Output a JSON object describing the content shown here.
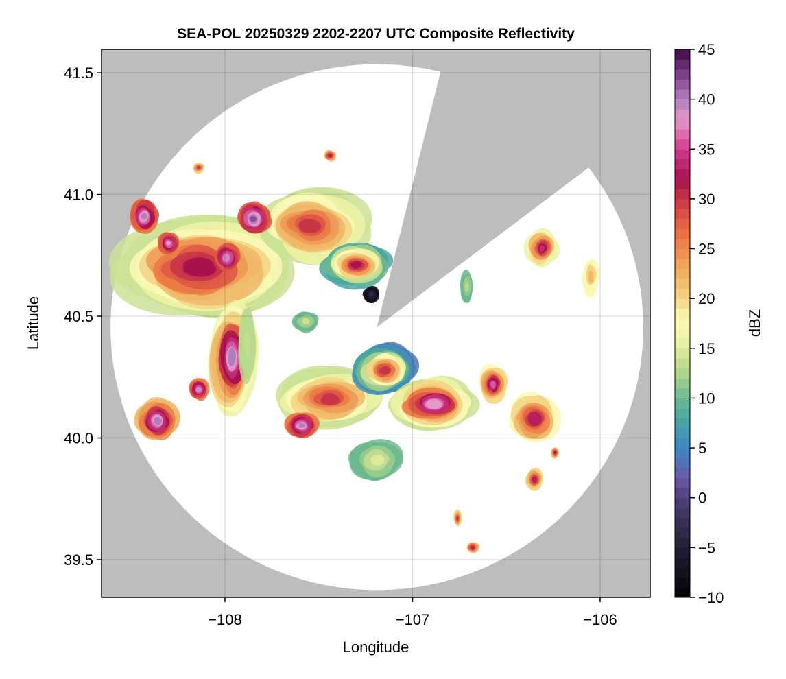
{
  "chart_data": {
    "type": "heatmap",
    "title": "SEA-POL 20250329 2202-2207 UTC Composite Reflectivity",
    "xlabel": "Longitude",
    "ylabel": "Latitude",
    "xlim": [
      -108.658,
      -105.733
    ],
    "ylim": [
      39.345,
      41.596
    ],
    "xticks": [
      -108,
      -107,
      -106
    ],
    "xtick_labels": [
      "−108",
      "−107",
      "−106"
    ],
    "yticks": [
      39.5,
      40.0,
      40.5,
      41.0,
      41.5
    ],
    "ytick_labels": [
      "39.5",
      "40.0",
      "40.5",
      "41.0",
      "41.5"
    ],
    "grid": true,
    "colorbar": {
      "label": "dBZ",
      "range": [
        -10,
        45
      ],
      "bin_width": 1,
      "ticks": [
        -10,
        -5,
        0,
        5,
        10,
        15,
        20,
        25,
        30,
        35,
        40,
        45
      ],
      "tick_labels": [
        "−10",
        "−5",
        "0",
        "5",
        "10",
        "15",
        "20",
        "25",
        "30",
        "35",
        "40",
        "45"
      ],
      "color_stops": [
        [
          -10,
          "#050307"
        ],
        [
          -5,
          "#231d33"
        ],
        [
          0,
          "#4f4178"
        ],
        [
          2,
          "#6a5aa8"
        ],
        [
          5,
          "#3f86bf"
        ],
        [
          8,
          "#4aa6a0"
        ],
        [
          10,
          "#6db98f"
        ],
        [
          13,
          "#b9d98d"
        ],
        [
          16,
          "#eef3a6"
        ],
        [
          18,
          "#faf8b6"
        ],
        [
          20,
          "#f3d482"
        ],
        [
          23,
          "#eeaa5e"
        ],
        [
          26,
          "#eb7a45"
        ],
        [
          29,
          "#d84545"
        ],
        [
          32,
          "#a8124e"
        ],
        [
          35,
          "#d23b8f"
        ],
        [
          38,
          "#e39ac8"
        ],
        [
          40,
          "#ae7fbb"
        ],
        [
          42,
          "#8a4b97"
        ],
        [
          45,
          "#3e0a47"
        ]
      ]
    },
    "radar": {
      "center_lon": -107.19,
      "center_lat": 40.455,
      "range_deg_lon": 1.42,
      "range_deg_lat": 1.08,
      "blocked_sector_bearing_deg": [
        14,
        53
      ]
    },
    "echo_regions": [
      {
        "lon": -108.14,
        "lat": 40.7,
        "rlon": 0.45,
        "rlat": 0.2,
        "base": 14,
        "peak": 32
      },
      {
        "lon": -107.55,
        "lat": 40.87,
        "rlon": 0.28,
        "rlat": 0.14,
        "base": 14,
        "peak": 30
      },
      {
        "lon": -107.85,
        "lat": 40.9,
        "rlon": 0.08,
        "rlat": 0.06,
        "base": 28,
        "peak": 42
      },
      {
        "lon": -108.43,
        "lat": 40.91,
        "rlon": 0.07,
        "rlat": 0.07,
        "base": 26,
        "peak": 40
      },
      {
        "lon": -107.99,
        "lat": 40.74,
        "rlon": 0.06,
        "rlat": 0.05,
        "base": 28,
        "peak": 39
      },
      {
        "lon": -108.3,
        "lat": 40.8,
        "rlon": 0.05,
        "rlat": 0.04,
        "base": 28,
        "peak": 38
      },
      {
        "lon": -107.3,
        "lat": 40.71,
        "rlon": 0.16,
        "rlat": 0.08,
        "base": 8,
        "peak": 32
      },
      {
        "lon": -107.22,
        "lat": 40.59,
        "rlon": 0.04,
        "rlat": 0.03,
        "base": -8,
        "peak": -3
      },
      {
        "lon": -107.96,
        "lat": 40.33,
        "rlon": 0.12,
        "rlat": 0.2,
        "base": 16,
        "peak": 40
      },
      {
        "lon": -107.88,
        "lat": 40.38,
        "rlon": 0.04,
        "rlat": 0.13,
        "base": 13,
        "peak": 13
      },
      {
        "lon": -108.14,
        "lat": 40.2,
        "rlon": 0.05,
        "rlat": 0.04,
        "base": 26,
        "peak": 39
      },
      {
        "lon": -108.36,
        "lat": 40.07,
        "rlon": 0.1,
        "rlat": 0.08,
        "base": 22,
        "peak": 40
      },
      {
        "lon": -107.44,
        "lat": 40.16,
        "rlon": 0.26,
        "rlat": 0.11,
        "base": 14,
        "peak": 30
      },
      {
        "lon": -107.59,
        "lat": 40.05,
        "rlon": 0.08,
        "rlat": 0.05,
        "base": 26,
        "peak": 40
      },
      {
        "lon": -107.15,
        "lat": 40.28,
        "rlon": 0.16,
        "rlat": 0.1,
        "base": 4,
        "peak": 30
      },
      {
        "lon": -106.89,
        "lat": 40.14,
        "rlon": 0.22,
        "rlat": 0.1,
        "base": 14,
        "peak": 38
      },
      {
        "lon": -106.57,
        "lat": 40.22,
        "rlon": 0.07,
        "rlat": 0.07,
        "base": 18,
        "peak": 36
      },
      {
        "lon": -106.35,
        "lat": 40.08,
        "rlon": 0.12,
        "rlat": 0.09,
        "base": 18,
        "peak": 33
      },
      {
        "lon": -106.31,
        "lat": 40.78,
        "rlon": 0.08,
        "rlat": 0.07,
        "base": 16,
        "peak": 34
      },
      {
        "lon": -106.05,
        "lat": 40.66,
        "rlon": 0.04,
        "rlat": 0.07,
        "base": 18,
        "peak": 22
      },
      {
        "lon": -106.35,
        "lat": 39.83,
        "rlon": 0.04,
        "rlat": 0.04,
        "base": 20,
        "peak": 33
      },
      {
        "lon": -106.68,
        "lat": 39.55,
        "rlon": 0.03,
        "rlat": 0.02,
        "base": 22,
        "peak": 33
      },
      {
        "lon": -106.76,
        "lat": 39.67,
        "rlon": 0.02,
        "rlat": 0.03,
        "base": 20,
        "peak": 30
      },
      {
        "lon": -107.19,
        "lat": 39.91,
        "rlon": 0.13,
        "rlat": 0.08,
        "base": 10,
        "peak": 15
      },
      {
        "lon": -106.71,
        "lat": 40.62,
        "rlon": 0.03,
        "rlat": 0.06,
        "base": 10,
        "peak": 13
      },
      {
        "lon": -107.44,
        "lat": 41.16,
        "rlon": 0.03,
        "rlat": 0.02,
        "base": 22,
        "peak": 33
      },
      {
        "lon": -108.14,
        "lat": 41.11,
        "rlon": 0.03,
        "rlat": 0.02,
        "base": 20,
        "peak": 30
      },
      {
        "lon": -106.24,
        "lat": 39.94,
        "rlon": 0.02,
        "rlat": 0.02,
        "base": 22,
        "peak": 32
      },
      {
        "lon": -107.57,
        "lat": 40.48,
        "rlon": 0.06,
        "rlat": 0.04,
        "base": 10,
        "peak": 14
      }
    ]
  }
}
